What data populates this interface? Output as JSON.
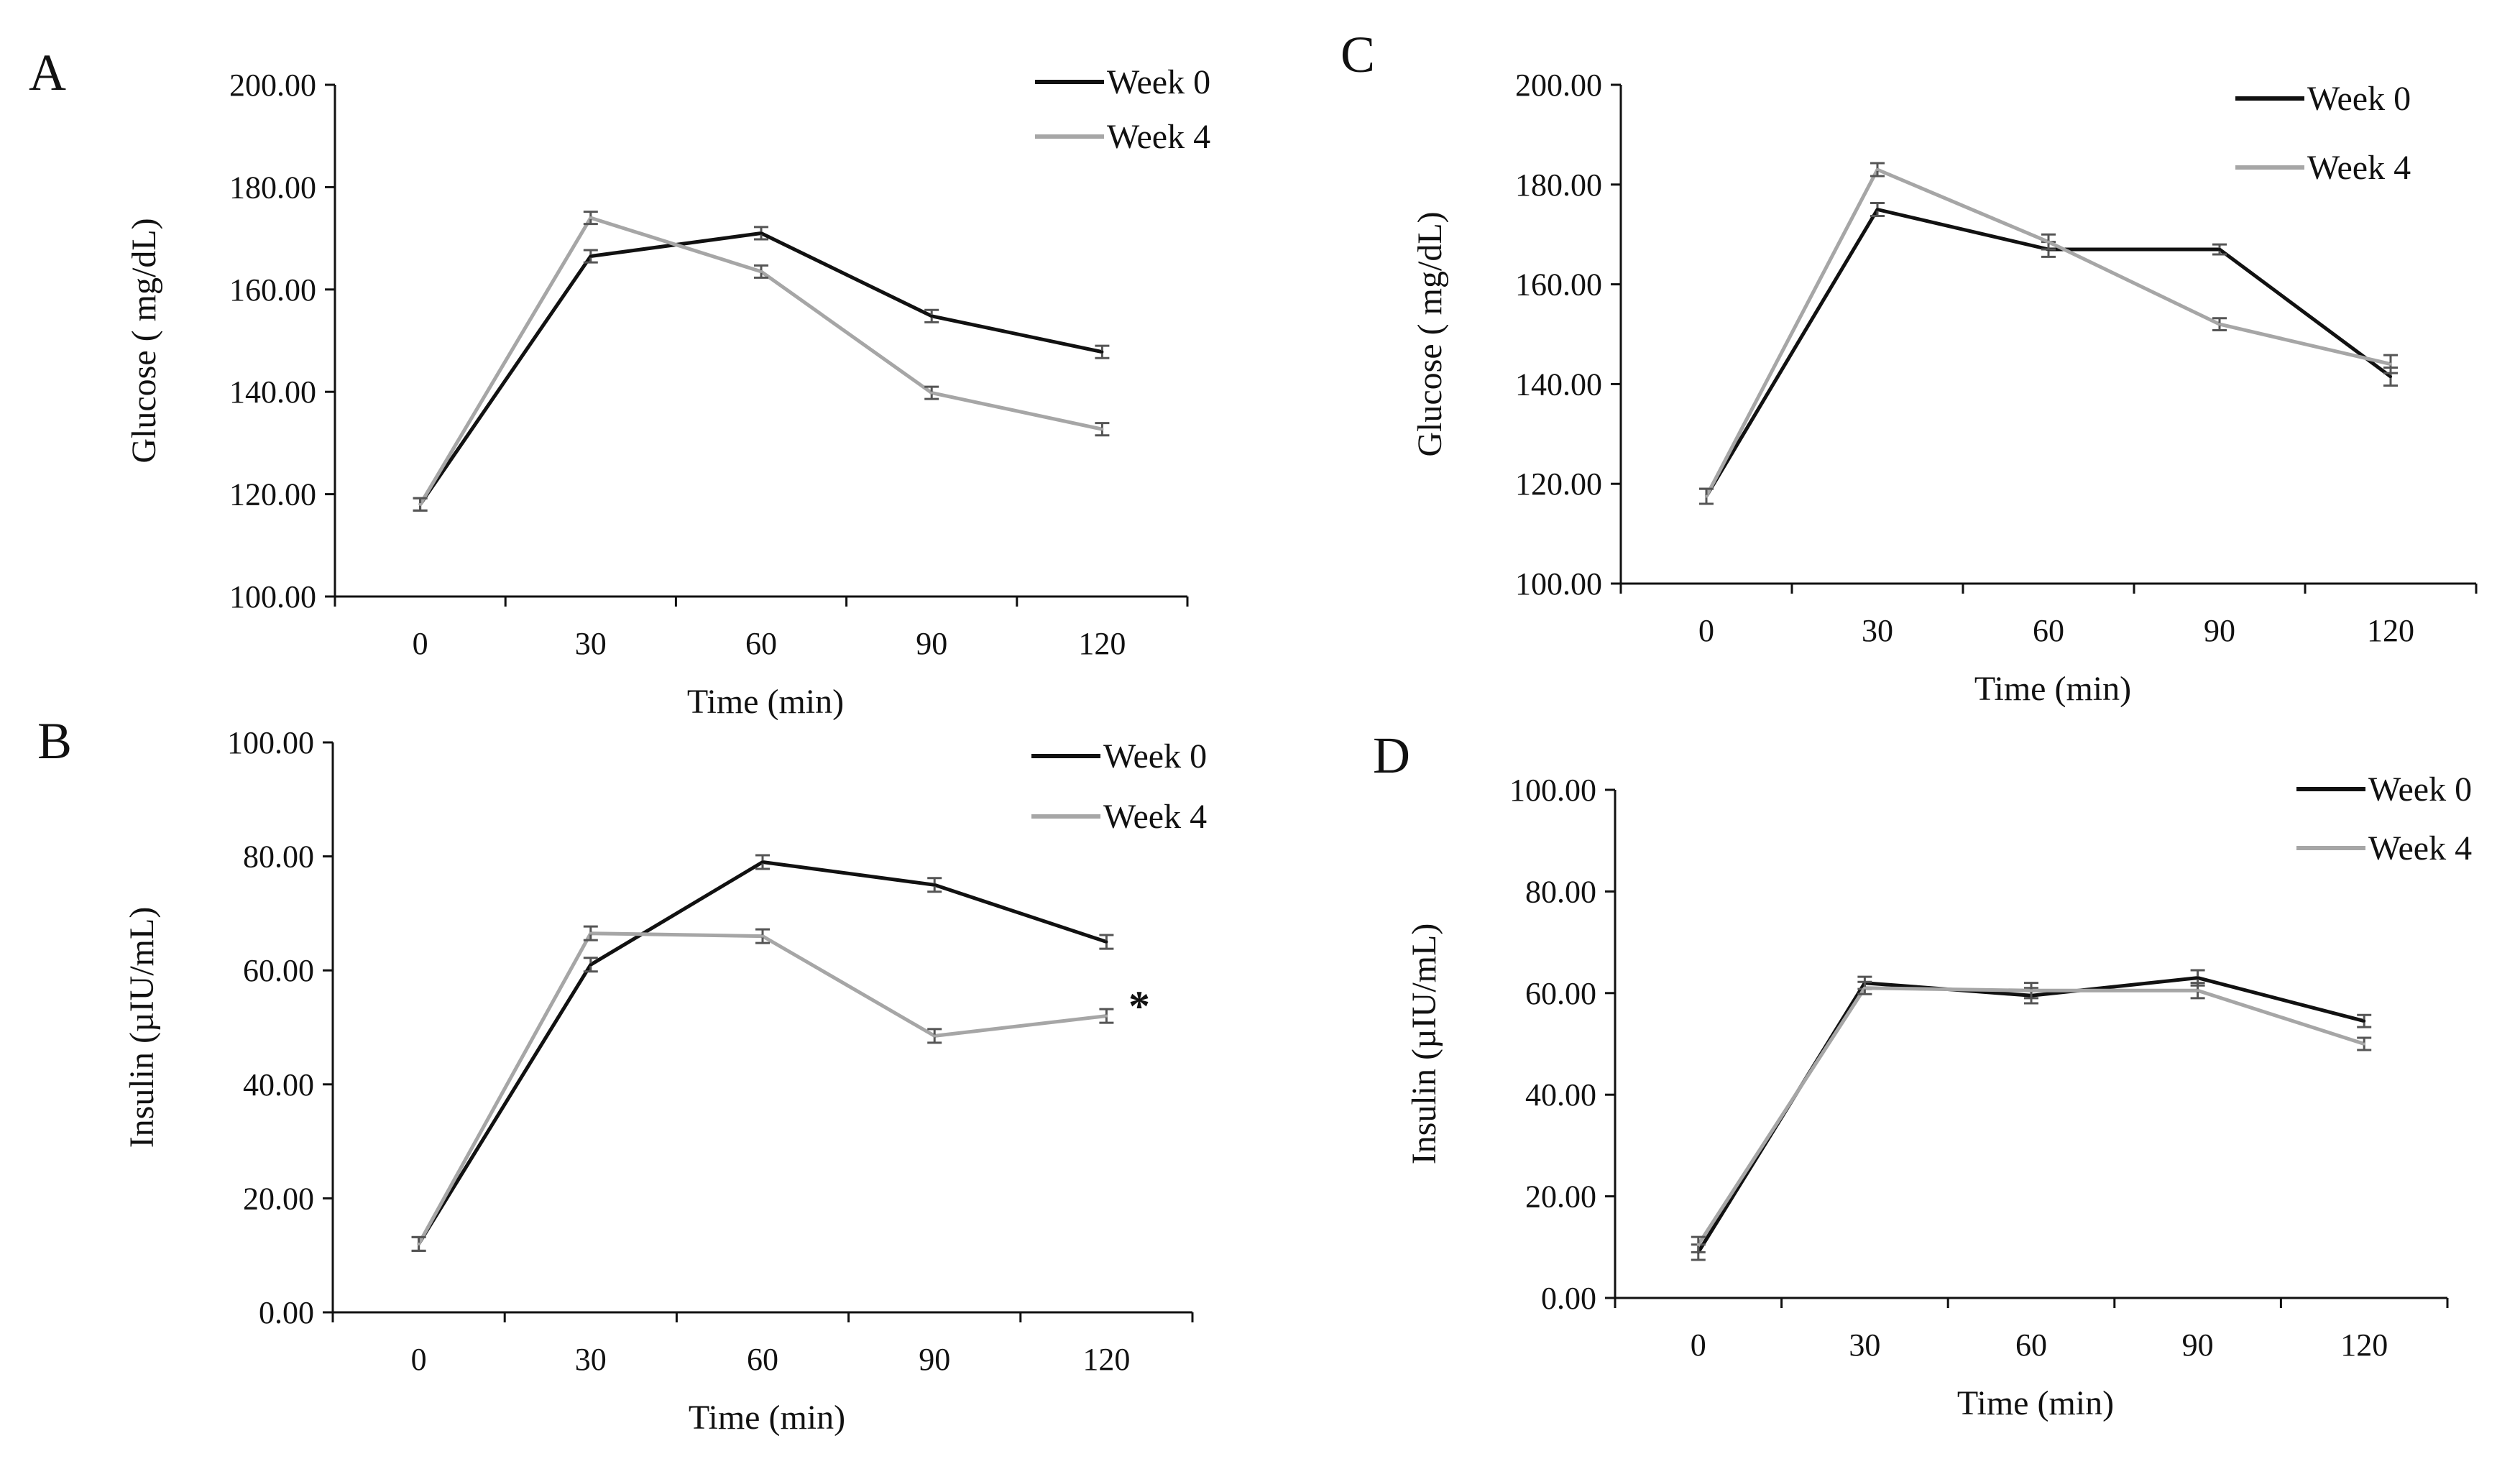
{
  "figure": {
    "panels": [
      {
        "letter": "A"
      },
      {
        "letter": "C"
      },
      {
        "letter": "B"
      },
      {
        "letter": "D"
      }
    ]
  },
  "chart_data": [
    {
      "panel": "A",
      "type": "line",
      "title": "",
      "xlabel": "Time (min)",
      "ylabel": "Glucose ( mg/dL)",
      "categories": [
        "0",
        "30",
        "60",
        "90",
        "120"
      ],
      "ylim": [
        100,
        200
      ],
      "yticks": [
        100,
        120,
        140,
        160,
        180,
        200
      ],
      "ytick_labels": [
        "100.00",
        "120.00",
        "140.00",
        "160.00",
        "180.00",
        "200.00"
      ],
      "legend_position": "top-right",
      "annotation": "",
      "series": [
        {
          "name": "Week 0",
          "color": "#111111",
          "values": [
            118.0,
            166.5,
            171.0,
            154.8,
            147.8
          ],
          "errors": [
            1.2,
            1.2,
            1.2,
            1.2,
            1.2
          ]
        },
        {
          "name": "Week 4",
          "color": "#a6a6a6",
          "values": [
            118.0,
            174.0,
            163.5,
            139.8,
            132.7
          ],
          "errors": [
            1.2,
            1.2,
            1.2,
            1.2,
            1.2
          ]
        }
      ]
    },
    {
      "panel": "C",
      "type": "line",
      "title": "",
      "xlabel": "Time (min)",
      "ylabel": "Glucose ( mg/dL)",
      "categories": [
        "0",
        "30",
        "60",
        "90",
        "120"
      ],
      "ylim": [
        100,
        200
      ],
      "yticks": [
        100,
        120,
        140,
        160,
        180,
        200
      ],
      "ytick_labels": [
        "100.00",
        "120.00",
        "140.00",
        "160.00",
        "180.00",
        "200.00"
      ],
      "legend_position": "top-right",
      "annotation": "",
      "series": [
        {
          "name": "Week 0",
          "color": "#111111",
          "values": [
            117.5,
            175.0,
            167.0,
            167.0,
            141.5
          ],
          "errors": [
            1.5,
            1.3,
            1.5,
            1.0,
            1.8
          ]
        },
        {
          "name": "Week 4",
          "color": "#a6a6a6",
          "values": [
            117.5,
            183.0,
            168.5,
            152.0,
            144.0
          ],
          "errors": [
            1.5,
            1.3,
            1.5,
            1.2,
            1.8
          ]
        }
      ]
    },
    {
      "panel": "B",
      "type": "line",
      "title": "",
      "xlabel": "Time (min)",
      "ylabel": "Insulin (µIU/mL)",
      "categories": [
        "0",
        "30",
        "60",
        "90",
        "120"
      ],
      "ylim": [
        0,
        100
      ],
      "yticks": [
        0,
        20,
        40,
        60,
        80,
        100
      ],
      "ytick_labels": [
        "0.00",
        "20.00",
        "40.00",
        "60.00",
        "80.00",
        "100.00"
      ],
      "legend_position": "top-right",
      "annotation": "*",
      "series": [
        {
          "name": "Week 0",
          "color": "#111111",
          "values": [
            12.0,
            61.0,
            79.0,
            75.0,
            65.0
          ],
          "errors": [
            1.2,
            1.2,
            1.2,
            1.2,
            1.2
          ]
        },
        {
          "name": "Week 4",
          "color": "#a6a6a6",
          "values": [
            12.0,
            66.5,
            66.0,
            48.5,
            52.0
          ],
          "errors": [
            1.2,
            1.2,
            1.2,
            1.2,
            1.2
          ]
        }
      ]
    },
    {
      "panel": "D",
      "type": "line",
      "title": "",
      "xlabel": "Time (min)",
      "ylabel": "Insulin (µIU/mL)",
      "categories": [
        "0",
        "30",
        "60",
        "90",
        "120"
      ],
      "ylim": [
        0,
        100
      ],
      "yticks": [
        0,
        20,
        40,
        60,
        80,
        100
      ],
      "ytick_labels": [
        "0.00",
        "20.00",
        "40.00",
        "60.00",
        "80.00",
        "100.00"
      ],
      "legend_position": "top-right",
      "annotation": "",
      "series": [
        {
          "name": "Week 0",
          "color": "#111111",
          "values": [
            9.0,
            62.0,
            59.5,
            63.0,
            54.5
          ],
          "errors": [
            1.5,
            1.2,
            1.5,
            1.5,
            1.2
          ]
        },
        {
          "name": "Week 4",
          "color": "#a6a6a6",
          "values": [
            10.5,
            61.0,
            60.5,
            60.5,
            50.0
          ],
          "errors": [
            1.5,
            1.2,
            1.5,
            1.5,
            1.2
          ]
        }
      ]
    }
  ]
}
